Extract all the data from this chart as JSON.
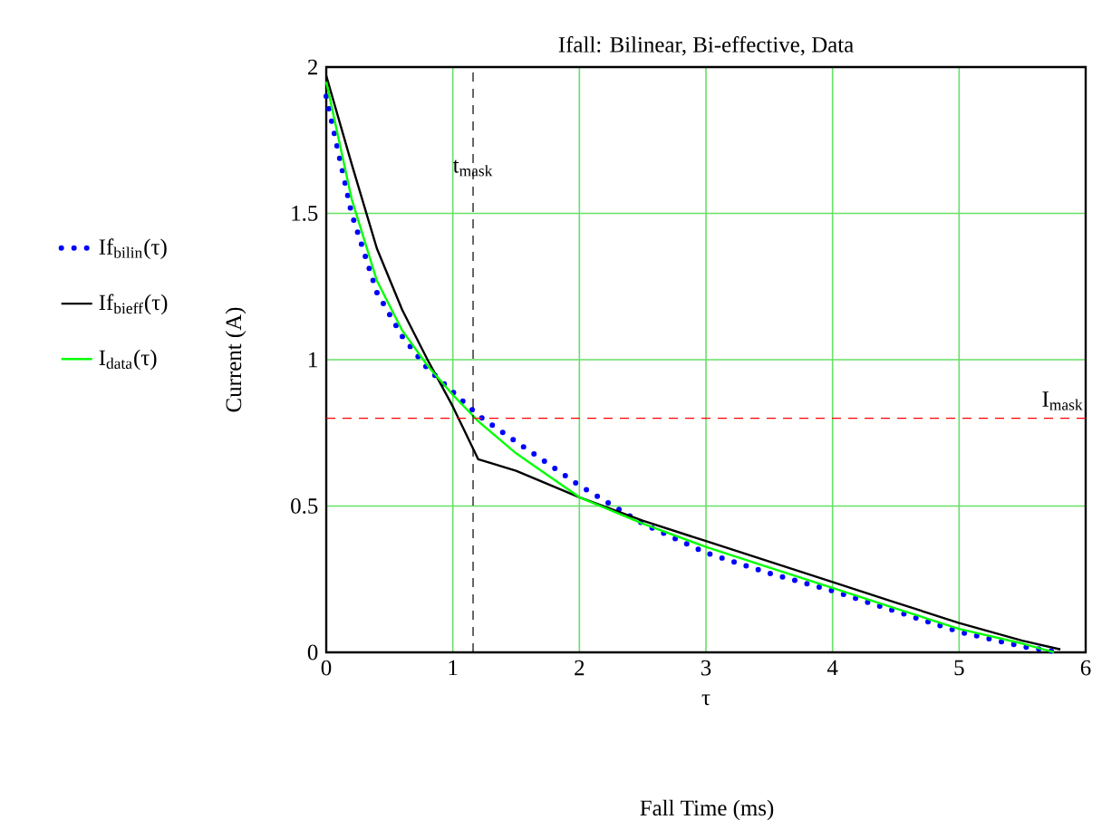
{
  "chart_data": {
    "type": "line",
    "title": "Ifall: Bilinear, Bi-effective, Data",
    "xlabel": "τ",
    "ylabel": "Current (A)",
    "annotations": [
      "Fall Time (ms)"
    ],
    "xlim": [
      0,
      6
    ],
    "ylim": [
      0,
      2
    ],
    "xticks": [
      0,
      1,
      2,
      3,
      4,
      5,
      6
    ],
    "yticks": [
      0,
      0.5,
      1,
      1.5,
      2
    ],
    "grid": true,
    "legend": "left",
    "marker": "none",
    "ref_lines": [
      {
        "axis": "x",
        "value": 1.16,
        "label": "t$_{mask}$",
        "color": "#000000",
        "line_style": "dashed"
      },
      {
        "axis": "y",
        "value": 0.8,
        "label": "I$_{mask}$",
        "color": "#ff0000",
        "line_style": "dashed"
      }
    ],
    "x": [
      0,
      0.2,
      0.4,
      0.6,
      0.8,
      1.0,
      1.2,
      1.5,
      2,
      2.5,
      3,
      3.5,
      4,
      4.5,
      5,
      5.5,
      5.8
    ],
    "series": [
      {
        "name": "If$_{bilin}$(τ)",
        "color": "#0000ff",
        "line_style": "dotted",
        "values": [
          1.9,
          1.5,
          1.23,
          1.08,
          0.97,
          0.89,
          0.81,
          0.72,
          0.57,
          0.44,
          0.34,
          0.27,
          0.21,
          0.14,
          0.07,
          0.02,
          0
        ]
      },
      {
        "name": "If$_{bieff}$(τ)",
        "color": "#000000",
        "line_style": "solid",
        "values": [
          1.97,
          1.67,
          1.38,
          1.17,
          1.0,
          0.84,
          0.66,
          0.62,
          0.53,
          0.45,
          0.38,
          0.31,
          0.24,
          0.17,
          0.1,
          0.04,
          0.01
        ]
      },
      {
        "name": "I$_{data}$(τ)",
        "color": "#00ff00",
        "line_style": "solid",
        "x": [
          0,
          0.2,
          0.4,
          0.6,
          0.8,
          1.0,
          1.2,
          1.5,
          2,
          2.5,
          3,
          3.5,
          4,
          4.5,
          5,
          5.5,
          5.75
        ],
        "values": [
          1.95,
          1.55,
          1.27,
          1.1,
          0.98,
          0.88,
          0.79,
          0.68,
          0.53,
          0.44,
          0.36,
          0.29,
          0.22,
          0.15,
          0.08,
          0.03,
          0
        ]
      }
    ]
  }
}
